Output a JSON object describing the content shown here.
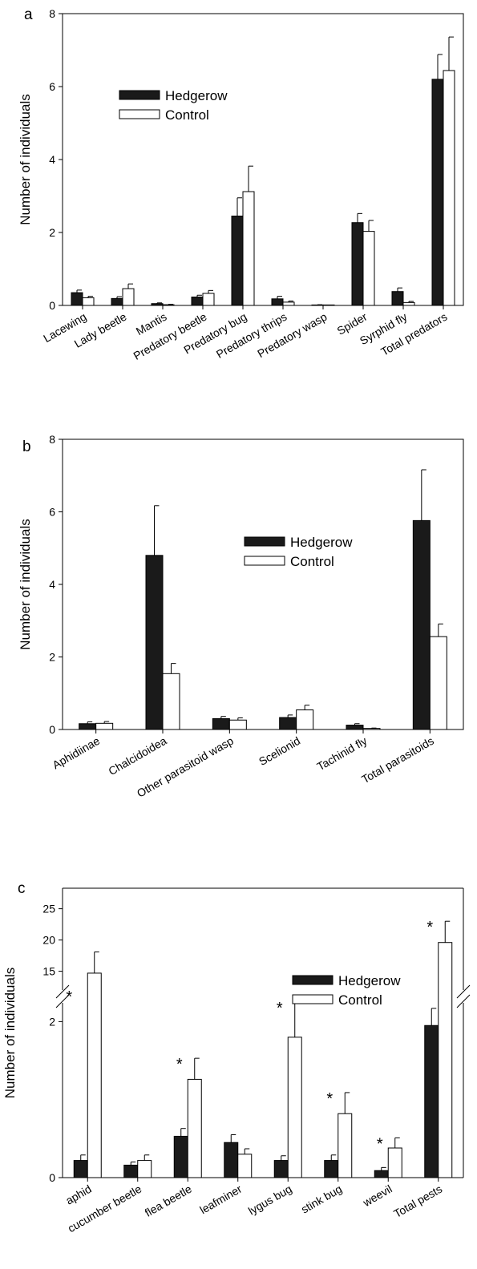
{
  "chart_data": [
    {
      "type": "bar",
      "panel_label": "a",
      "title": "",
      "xlabel": "",
      "ylabel": "Number of individuals",
      "ylim": [
        0,
        8
      ],
      "yticks": [
        0,
        2,
        4,
        6,
        8
      ],
      "categories": [
        "Lacewing",
        "Lady beetle",
        "Mantis",
        "Predatory beetle",
        "Predatory bug",
        "Predatory thrips",
        "Predatory wasp",
        "Spider",
        "Syrphid fly",
        "Total predators"
      ],
      "series": [
        {
          "name": "Hedgerow",
          "color": "#1a1a1a",
          "values": [
            0.35,
            0.19,
            0.05,
            0.23,
            2.45,
            0.18,
            0.01,
            2.27,
            0.38,
            6.2
          ],
          "errors": [
            0.07,
            0.05,
            0.02,
            0.05,
            0.5,
            0.07,
            0.01,
            0.25,
            0.1,
            0.68
          ]
        },
        {
          "name": "Control",
          "color": "#ffffff",
          "values": [
            0.21,
            0.46,
            0.02,
            0.33,
            3.12,
            0.09,
            0.0,
            2.03,
            0.08,
            6.44
          ],
          "errors": [
            0.04,
            0.13,
            0.01,
            0.08,
            0.7,
            0.03,
            0.0,
            0.3,
            0.03,
            0.92
          ]
        }
      ],
      "legend_position": "upper-left",
      "significant": []
    },
    {
      "type": "bar",
      "panel_label": "b",
      "title": "",
      "xlabel": "",
      "ylabel": "Number of individuals",
      "ylim": [
        0,
        8
      ],
      "yticks": [
        0,
        2,
        4,
        6,
        8
      ],
      "categories": [
        "Aphidiinae",
        "Chalcidoidea",
        "Other parasitoid wasp",
        "Scelionid",
        "Tachinid fly",
        "Total parasitoids"
      ],
      "series": [
        {
          "name": "Hedgerow",
          "color": "#1a1a1a",
          "values": [
            0.16,
            4.8,
            0.3,
            0.33,
            0.12,
            5.76
          ],
          "errors": [
            0.05,
            1.37,
            0.06,
            0.07,
            0.04,
            1.4
          ]
        },
        {
          "name": "Control",
          "color": "#ffffff",
          "values": [
            0.17,
            1.54,
            0.26,
            0.54,
            0.03,
            2.56
          ],
          "errors": [
            0.05,
            0.28,
            0.06,
            0.13,
            0.01,
            0.35
          ]
        }
      ],
      "legend_position": "center-right",
      "significant": []
    },
    {
      "type": "bar",
      "panel_label": "c",
      "title": "",
      "xlabel": "",
      "ylabel": "Number of individuals",
      "y_axis_broken": true,
      "ylim_lower": [
        0,
        3
      ],
      "ylim_upper": [
        12,
        25
      ],
      "yticks": [
        0,
        2,
        15,
        20,
        25
      ],
      "categories": [
        "aphid",
        "cucumber beetle",
        "flea beetle",
        "leafminer",
        "lygus bug",
        "stink bug",
        "weevil",
        "Total pests"
      ],
      "series": [
        {
          "name": "Hedgerow",
          "color": "#1a1a1a",
          "values": [
            0.22,
            0.16,
            0.53,
            0.45,
            0.22,
            0.22,
            0.09,
            1.95
          ],
          "errors": [
            0.07,
            0.04,
            0.1,
            0.1,
            0.06,
            0.07,
            0.04,
            0.22
          ]
        },
        {
          "name": "Control",
          "color": "#ffffff",
          "values": [
            14.7,
            0.22,
            1.26,
            0.3,
            1.8,
            0.82,
            0.38,
            19.6
          ],
          "errors": [
            3.4,
            0.07,
            0.27,
            0.07,
            0.45,
            0.27,
            0.13,
            3.4
          ]
        }
      ],
      "legend_position": "upper-right",
      "significance_marker": "*",
      "significant": [
        "aphid",
        "flea beetle",
        "lygus bug",
        "stink bug",
        "weevil",
        "Total pests"
      ]
    }
  ]
}
